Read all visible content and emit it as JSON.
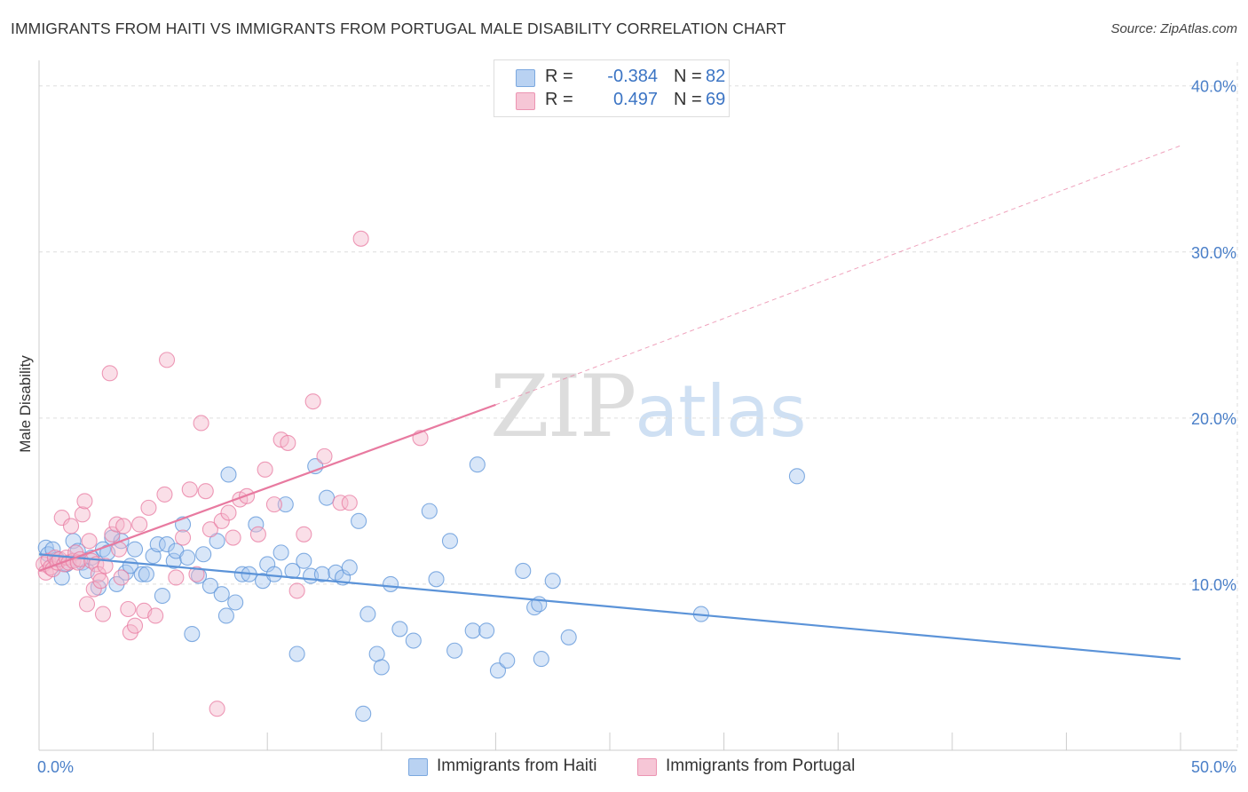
{
  "title": "IMMIGRANTS FROM HAITI VS IMMIGRANTS FROM PORTUGAL MALE DISABILITY CORRELATION CHART",
  "source": "Source: ZipAtlas.com",
  "watermark": {
    "zip": "ZIP",
    "atlas": "atlas"
  },
  "legend": {
    "rows": [
      {
        "r_label": "R =",
        "r_value": "-0.384",
        "n_label": "N =",
        "n_value": "82",
        "color": "#a8c8f0"
      },
      {
        "r_label": "R =",
        "r_value": "0.497",
        "n_label": "N =",
        "n_value": "69",
        "color": "#f5b8cc"
      }
    ]
  },
  "bottom_legend": [
    {
      "label": "Immigrants from Haiti",
      "color": "#a8c8f0"
    },
    {
      "label": "Immigrants from Portugal",
      "color": "#f5b8cc"
    }
  ],
  "chart_data": {
    "type": "scatter",
    "ylabel": "Male Disability",
    "xlim": [
      0,
      50
    ],
    "ylim": [
      0,
      41
    ],
    "x_tick_labels": [
      {
        "value": 0,
        "label": "0.0%"
      },
      {
        "value": 50,
        "label": "50.0%"
      }
    ],
    "y_tick_labels": [
      {
        "value": 10,
        "label": "10.0%"
      },
      {
        "value": 20,
        "label": "20.0%"
      },
      {
        "value": 30,
        "label": "30.0%"
      },
      {
        "value": 40,
        "label": "40.0%"
      }
    ],
    "grid": true,
    "series": [
      {
        "name": "Immigrants from Haiti",
        "color": "#5b93d8",
        "fill": "#a8c8f0",
        "trend": {
          "x": [
            0,
            50
          ],
          "y": [
            11.8,
            5.5
          ],
          "dashed_extension": false
        },
        "points": [
          [
            0.3,
            12.2
          ],
          [
            0.4,
            11.8
          ],
          [
            0.6,
            12.1
          ],
          [
            0.8,
            11.5
          ],
          [
            1.0,
            10.4
          ],
          [
            1.2,
            11.2
          ],
          [
            1.5,
            12.6
          ],
          [
            1.7,
            12.0
          ],
          [
            1.9,
            11.3
          ],
          [
            2.1,
            10.8
          ],
          [
            2.3,
            11.6
          ],
          [
            2.6,
            9.8
          ],
          [
            2.8,
            12.1
          ],
          [
            3.0,
            11.9
          ],
          [
            3.2,
            12.8
          ],
          [
            3.4,
            10.0
          ],
          [
            3.6,
            12.6
          ],
          [
            3.8,
            10.7
          ],
          [
            4.0,
            11.1
          ],
          [
            4.2,
            12.1
          ],
          [
            4.5,
            10.6
          ],
          [
            4.7,
            10.6
          ],
          [
            5.0,
            11.7
          ],
          [
            5.2,
            12.4
          ],
          [
            5.4,
            9.3
          ],
          [
            5.6,
            12.4
          ],
          [
            5.9,
            11.4
          ],
          [
            6.0,
            12.0
          ],
          [
            6.3,
            13.6
          ],
          [
            6.5,
            11.6
          ],
          [
            6.7,
            7.0
          ],
          [
            7.0,
            10.5
          ],
          [
            7.2,
            11.8
          ],
          [
            7.5,
            9.9
          ],
          [
            7.8,
            12.6
          ],
          [
            8.0,
            9.4
          ],
          [
            8.2,
            8.1
          ],
          [
            8.3,
            16.6
          ],
          [
            8.6,
            8.9
          ],
          [
            8.9,
            10.6
          ],
          [
            9.2,
            10.6
          ],
          [
            9.5,
            13.6
          ],
          [
            9.8,
            10.2
          ],
          [
            10.0,
            11.2
          ],
          [
            10.3,
            10.6
          ],
          [
            10.6,
            11.9
          ],
          [
            10.8,
            14.8
          ],
          [
            11.1,
            10.8
          ],
          [
            11.3,
            5.8
          ],
          [
            11.6,
            11.4
          ],
          [
            11.9,
            10.5
          ],
          [
            12.1,
            17.1
          ],
          [
            12.4,
            10.6
          ],
          [
            12.6,
            15.2
          ],
          [
            13.0,
            10.7
          ],
          [
            13.3,
            10.4
          ],
          [
            13.6,
            11.0
          ],
          [
            14.0,
            13.8
          ],
          [
            14.2,
            2.2
          ],
          [
            14.4,
            8.2
          ],
          [
            14.8,
            5.8
          ],
          [
            15.0,
            5.0
          ],
          [
            15.4,
            10.0
          ],
          [
            15.8,
            7.3
          ],
          [
            16.4,
            6.6
          ],
          [
            17.1,
            14.4
          ],
          [
            17.4,
            10.3
          ],
          [
            18.0,
            12.6
          ],
          [
            18.2,
            6.0
          ],
          [
            19.2,
            17.2
          ],
          [
            19.0,
            7.2
          ],
          [
            19.6,
            7.2
          ],
          [
            20.1,
            4.8
          ],
          [
            20.5,
            5.4
          ],
          [
            21.2,
            10.8
          ],
          [
            21.7,
            8.6
          ],
          [
            21.9,
            8.8
          ],
          [
            22.0,
            5.5
          ],
          [
            22.5,
            10.2
          ],
          [
            23.2,
            6.8
          ],
          [
            29.0,
            8.2
          ],
          [
            33.2,
            16.5
          ]
        ]
      },
      {
        "name": "Immigrants from Portugal",
        "color": "#e87aa0",
        "fill": "#f5b8cc",
        "trend": {
          "x": [
            0,
            20
          ],
          "y": [
            10.8,
            20.8
          ],
          "dashed_extension": true,
          "extension_to": [
            50,
            36.4
          ]
        },
        "points": [
          [
            0.2,
            11.2
          ],
          [
            0.3,
            10.7
          ],
          [
            0.4,
            11.4
          ],
          [
            0.5,
            11.0
          ],
          [
            0.6,
            10.9
          ],
          [
            0.7,
            11.6
          ],
          [
            0.8,
            11.3
          ],
          [
            0.9,
            11.5
          ],
          [
            1.0,
            14.0
          ],
          [
            1.1,
            11.2
          ],
          [
            1.2,
            11.6
          ],
          [
            1.3,
            11.3
          ],
          [
            1.4,
            13.5
          ],
          [
            1.5,
            11.4
          ],
          [
            1.6,
            11.9
          ],
          [
            1.7,
            11.3
          ],
          [
            1.8,
            11.5
          ],
          [
            1.9,
            14.2
          ],
          [
            2.0,
            15.0
          ],
          [
            2.1,
            8.8
          ],
          [
            2.2,
            12.6
          ],
          [
            2.3,
            11.4
          ],
          [
            2.4,
            9.7
          ],
          [
            2.5,
            11.2
          ],
          [
            2.6,
            10.6
          ],
          [
            2.7,
            10.2
          ],
          [
            2.8,
            8.2
          ],
          [
            2.9,
            11.1
          ],
          [
            3.1,
            22.7
          ],
          [
            3.2,
            13.0
          ],
          [
            3.4,
            13.6
          ],
          [
            3.5,
            12.1
          ],
          [
            3.6,
            10.4
          ],
          [
            3.7,
            13.5
          ],
          [
            3.9,
            8.5
          ],
          [
            4.0,
            7.1
          ],
          [
            4.2,
            7.5
          ],
          [
            4.4,
            13.6
          ],
          [
            4.6,
            8.4
          ],
          [
            4.8,
            14.6
          ],
          [
            5.1,
            8.1
          ],
          [
            5.5,
            15.4
          ],
          [
            5.6,
            23.5
          ],
          [
            6.0,
            10.4
          ],
          [
            6.3,
            12.8
          ],
          [
            6.6,
            15.7
          ],
          [
            6.9,
            10.6
          ],
          [
            7.1,
            19.7
          ],
          [
            7.3,
            15.6
          ],
          [
            7.5,
            13.3
          ],
          [
            7.8,
            2.5
          ],
          [
            8.0,
            13.8
          ],
          [
            8.3,
            14.3
          ],
          [
            8.5,
            12.8
          ],
          [
            8.8,
            15.1
          ],
          [
            9.1,
            15.3
          ],
          [
            9.6,
            13.0
          ],
          [
            9.9,
            16.9
          ],
          [
            10.3,
            14.8
          ],
          [
            10.6,
            18.7
          ],
          [
            10.9,
            18.5
          ],
          [
            11.3,
            9.6
          ],
          [
            11.6,
            13.0
          ],
          [
            12.0,
            21.0
          ],
          [
            12.5,
            17.7
          ],
          [
            13.2,
            14.9
          ],
          [
            13.6,
            14.9
          ],
          [
            14.1,
            30.8
          ],
          [
            16.7,
            18.8
          ]
        ]
      }
    ]
  }
}
